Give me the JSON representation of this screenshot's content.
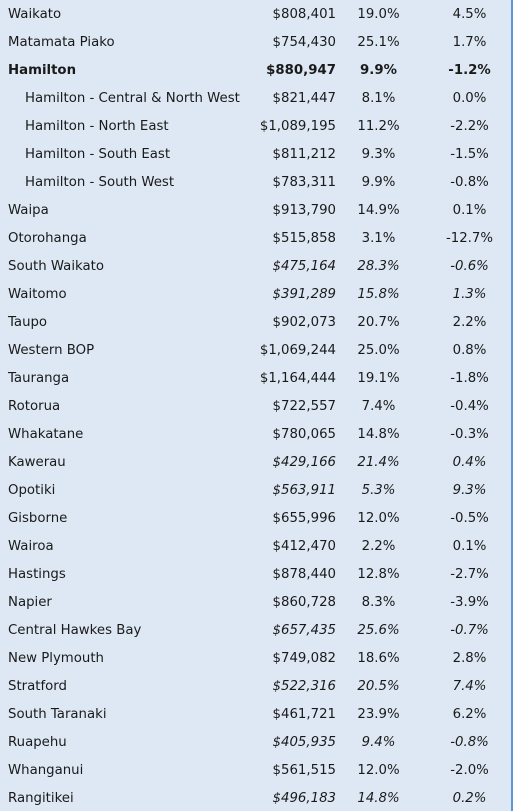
{
  "rows": [
    {
      "name": "Waikato",
      "value": "$808,401",
      "change1": "19.0%",
      "change2": "4.5%",
      "style": "normal"
    },
    {
      "name": "Matamata Piako",
      "value": "$754,430",
      "change1": "25.1%",
      "change2": "1.7%",
      "style": "normal"
    },
    {
      "name": "Hamilton",
      "value": "$880,947",
      "change1": "9.9%",
      "change2": "-1.2%",
      "style": "bold"
    },
    {
      "name": "Hamilton - Central & North West",
      "value": "$821,447",
      "change1": "8.1%",
      "change2": "0.0%",
      "style": "sub"
    },
    {
      "name": "Hamilton - North East",
      "value": "$1,089,195",
      "change1": "11.2%",
      "change2": "-2.2%",
      "style": "sub"
    },
    {
      "name": "Hamilton - South East",
      "value": "$811,212",
      "change1": "9.3%",
      "change2": "-1.5%",
      "style": "sub"
    },
    {
      "name": "Hamilton - South West",
      "value": "$783,311",
      "change1": "9.9%",
      "change2": "-0.8%",
      "style": "sub"
    },
    {
      "name": "Waipa",
      "value": "$913,790",
      "change1": "14.9%",
      "change2": "0.1%",
      "style": "normal"
    },
    {
      "name": "Otorohanga",
      "value": "$515,858",
      "change1": "3.1%",
      "change2": "-12.7%",
      "style": "normal"
    },
    {
      "name": "South Waikato",
      "value": "$475,164",
      "change1": "28.3%",
      "change2": "-0.6%",
      "style": "italic"
    },
    {
      "name": "Waitomo",
      "value": "$391,289",
      "change1": "15.8%",
      "change2": "1.3%",
      "style": "italic"
    },
    {
      "name": "Taupo",
      "value": "$902,073",
      "change1": "20.7%",
      "change2": "2.2%",
      "style": "normal"
    },
    {
      "name": "Western BOP",
      "value": "$1,069,244",
      "change1": "25.0%",
      "change2": "0.8%",
      "style": "normal"
    },
    {
      "name": "Tauranga",
      "value": "$1,164,444",
      "change1": "19.1%",
      "change2": "-1.8%",
      "style": "normal"
    },
    {
      "name": "Rotorua",
      "value": "$722,557",
      "change1": "7.4%",
      "change2": "-0.4%",
      "style": "normal"
    },
    {
      "name": "Whakatane",
      "value": "$780,065",
      "change1": "14.8%",
      "change2": "-0.3%",
      "style": "normal"
    },
    {
      "name": "Kawerau",
      "value": "$429,166",
      "change1": "21.4%",
      "change2": "0.4%",
      "style": "italic"
    },
    {
      "name": "Opotiki",
      "value": "$563,911",
      "change1": "5.3%",
      "change2": "9.3%",
      "style": "italic"
    },
    {
      "name": "Gisborne",
      "value": "$655,996",
      "change1": "12.0%",
      "change2": "-0.5%",
      "style": "normal"
    },
    {
      "name": "Wairoa",
      "value": "$412,470",
      "change1": "2.2%",
      "change2": "0.1%",
      "style": "normal"
    },
    {
      "name": "Hastings",
      "value": "$878,440",
      "change1": "12.8%",
      "change2": "-2.7%",
      "style": "normal"
    },
    {
      "name": "Napier",
      "value": "$860,728",
      "change1": "8.3%",
      "change2": "-3.9%",
      "style": "normal"
    },
    {
      "name": "Central Hawkes Bay",
      "value": "$657,435",
      "change1": "25.6%",
      "change2": "-0.7%",
      "style": "italic"
    },
    {
      "name": "New Plymouth",
      "value": "$749,082",
      "change1": "18.6%",
      "change2": "2.8%",
      "style": "normal"
    },
    {
      "name": "Stratford",
      "value": "$522,316",
      "change1": "20.5%",
      "change2": "7.4%",
      "style": "italic"
    },
    {
      "name": "South Taranaki",
      "value": "$461,721",
      "change1": "23.9%",
      "change2": "6.2%",
      "style": "normal"
    },
    {
      "name": "Ruapehu",
      "value": "$405,935",
      "change1": "9.4%",
      "change2": "-0.8%",
      "style": "italic"
    },
    {
      "name": "Whanganui",
      "value": "$561,515",
      "change1": "12.0%",
      "change2": "-2.0%",
      "style": "normal"
    },
    {
      "name": "Rangitikei",
      "value": "$496,183",
      "change1": "14.8%",
      "change2": "0.2%",
      "style": "italic"
    }
  ],
  "colors": {
    "background": "#dde8f4",
    "border": "#5a97d6",
    "text": "#1a1a1a"
  }
}
